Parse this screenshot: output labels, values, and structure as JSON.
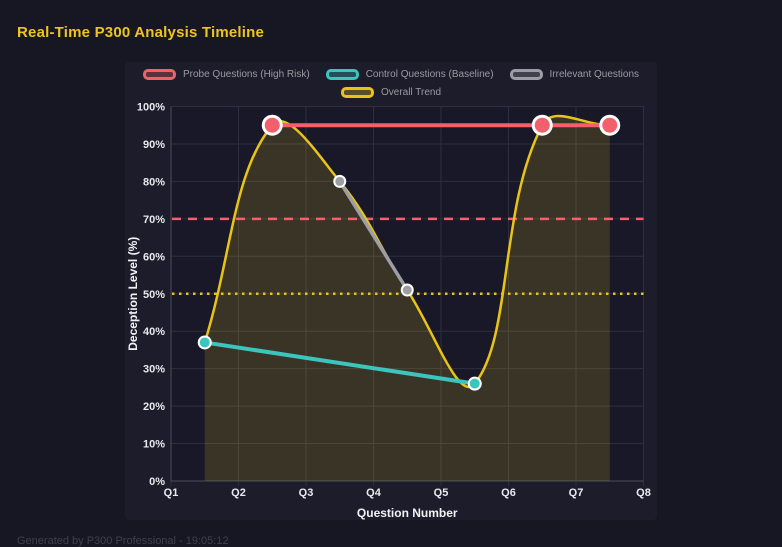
{
  "page": {
    "title": "Real-Time P300 Analysis Timeline",
    "footer": "Generated by P300 Professional - 19:05:12"
  },
  "chart_data": {
    "type": "line",
    "title": "Real-Time P300 Analysis Timeline",
    "xlabel": "Question Number",
    "ylabel": "Deception Level (%)",
    "x_ticks": [
      "Q1",
      "Q2",
      "Q3",
      "Q4",
      "Q5",
      "Q6",
      "Q7",
      "Q8"
    ],
    "y_ticks": [
      "0%",
      "10%",
      "20%",
      "30%",
      "40%",
      "50%",
      "60%",
      "70%",
      "80%",
      "90%",
      "100%"
    ],
    "x_range": [
      1,
      8
    ],
    "y_range": [
      0,
      100
    ],
    "grid": true,
    "legend_position": "top",
    "series": [
      {
        "name": "Probe Questions (High Risk)",
        "color": "#f3606b",
        "x": [
          2.5,
          6.5,
          7.5
        ],
        "y": [
          95,
          95,
          95
        ],
        "line_width": 4,
        "point_radius": 7.5,
        "point_border": 3,
        "smooth": false,
        "fill": false
      },
      {
        "name": "Control Questions (Baseline)",
        "color": "#3cc5bd",
        "x": [
          1.5,
          5.5
        ],
        "y": [
          37,
          26
        ],
        "line_width": 4,
        "point_radius": 5,
        "point_border": 2,
        "smooth": false,
        "fill": false
      },
      {
        "name": "Irrelevant Questions",
        "color": "#9d9da6",
        "x": [
          3.5,
          4.5
        ],
        "y": [
          80,
          51
        ],
        "line_width": 3.5,
        "point_radius": 4.5,
        "point_border": 2,
        "smooth": false,
        "fill": false
      },
      {
        "name": "Overall Trend",
        "color": "#e8c417",
        "x": [
          1.5,
          2.5,
          3.5,
          4.5,
          5.5,
          6.5,
          7.5
        ],
        "y": [
          37,
          95,
          80,
          51,
          26,
          95,
          95
        ],
        "line_width": 2.5,
        "point_radius": 0,
        "point_border": 0,
        "smooth": true,
        "fill": true,
        "area_fill": "rgba(232,196,23,0.17)"
      }
    ],
    "thresholds": [
      {
        "value": 70,
        "color": "#f3606b",
        "style": "dashed"
      },
      {
        "value": 50,
        "color": "#e8c417",
        "style": "dotted"
      }
    ],
    "colors": {
      "page_bg": "#171723",
      "panel_bg": "#1c1c2a",
      "plot_bg": "#181829",
      "grid": "#2e2e3d",
      "axis_border": "#4b4b59",
      "tick_label": "#e8e8ee",
      "axis_title": "#f2f2f6",
      "legend_label": "#9b9ba4",
      "point_ring": "#ffffff",
      "title": "#eec41f"
    }
  }
}
